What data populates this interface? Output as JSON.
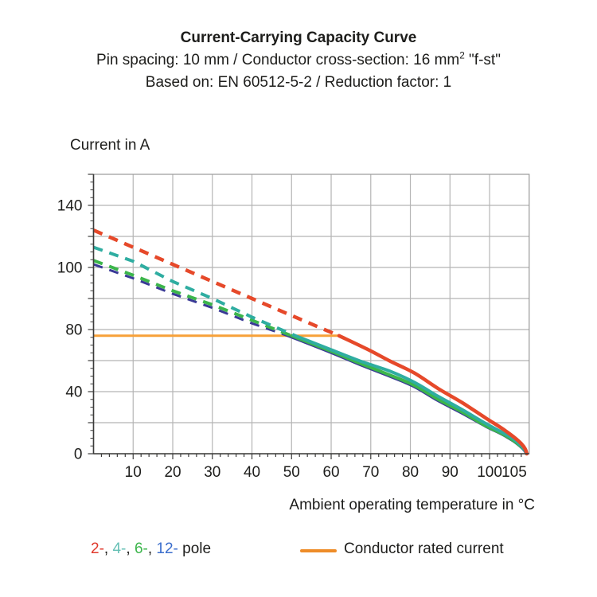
{
  "header": {
    "title": "Current-Carrying Capacity Curve",
    "subtitle_pre": "Pin spacing: 10 mm / Conductor cross-section: 16 mm",
    "subtitle_sup": "2",
    "subtitle_post": " \"f-st\"",
    "basis": "Based on: EN 60512-5-2 / Reduction factor: 1"
  },
  "chart_data": {
    "type": "line",
    "title": "Current-Carrying Capacity Curve",
    "xlabel": "Ambient operating temperature in °C",
    "ylabel": "Current in A",
    "x_unit": "°C",
    "y_unit": "A",
    "xlim": [
      0,
      110
    ],
    "x_gridline_values": [
      10,
      20,
      30,
      40,
      50,
      60,
      70,
      80,
      90,
      100
    ],
    "x_tick_labels": [
      "10",
      "20",
      "30",
      "40",
      "50",
      "60",
      "70",
      "80",
      "90",
      "100",
      "105"
    ],
    "x_tick_values": [
      10,
      20,
      30,
      40,
      50,
      60,
      70,
      80,
      90,
      100,
      105
    ],
    "y_axis_anchor_values": [
      0,
      20,
      40,
      60,
      80,
      90,
      100,
      120,
      140,
      160
    ],
    "y_labeled_ticks": [
      0,
      40,
      80,
      100,
      140
    ],
    "axis_note": "y gridlines evenly spaced at anchor values; scale is compressed between 80 and 100",
    "grid": true,
    "rated_current": {
      "value": 76,
      "temp_range": [
        0,
        62
      ],
      "color": "#f7a139",
      "label": "Conductor rated current"
    },
    "series": [
      {
        "name": "2-pole",
        "color": "#e6492a",
        "style": "dashed-then-solid",
        "dashed": [
          [
            0,
            124
          ],
          [
            10,
            113
          ],
          [
            20,
            102
          ],
          [
            30,
            95.5
          ],
          [
            40,
            90
          ],
          [
            50,
            84.5
          ],
          [
            62,
            76
          ]
        ],
        "solid": [
          [
            62,
            76
          ],
          [
            69,
            67.5
          ],
          [
            75,
            59.5
          ],
          [
            81,
            52
          ],
          [
            87,
            42
          ],
          [
            93,
            33
          ],
          [
            99,
            23
          ],
          [
            103,
            16.5
          ],
          [
            106,
            11
          ],
          [
            108,
            6.5
          ],
          [
            109,
            3
          ],
          [
            109.4,
            0
          ]
        ]
      },
      {
        "name": "4-pole",
        "color": "#2fada1",
        "style": "dashed-then-solid",
        "dashed": [
          [
            0,
            113
          ],
          [
            10,
            104
          ],
          [
            20,
            95.5
          ],
          [
            30,
            90
          ],
          [
            40,
            84
          ],
          [
            51,
            76
          ]
        ],
        "solid": [
          [
            51,
            76
          ],
          [
            60,
            67
          ],
          [
            67,
            60
          ],
          [
            75,
            53
          ],
          [
            81,
            46
          ],
          [
            87,
            37
          ],
          [
            93,
            28.5
          ],
          [
            99,
            19.5
          ],
          [
            103,
            14
          ],
          [
            106,
            9.5
          ],
          [
            108,
            5
          ],
          [
            109,
            2
          ],
          [
            109.3,
            0
          ]
        ]
      },
      {
        "name": "6-pole",
        "color": "#3cb54b",
        "style": "dashed-then-solid",
        "dashed": [
          [
            0,
            104.5
          ],
          [
            10,
            97.5
          ],
          [
            20,
            92.5
          ],
          [
            30,
            88
          ],
          [
            40,
            83
          ],
          [
            50,
            76
          ]
        ],
        "solid": [
          [
            50,
            76
          ],
          [
            60,
            66
          ],
          [
            67,
            58.5
          ],
          [
            75,
            50.5
          ],
          [
            81,
            44
          ],
          [
            87,
            35
          ],
          [
            93,
            27
          ],
          [
            99,
            18
          ],
          [
            103,
            13
          ],
          [
            106,
            8.5
          ],
          [
            108,
            4.5
          ],
          [
            109,
            2
          ],
          [
            109.3,
            0
          ]
        ]
      },
      {
        "name": "12-pole",
        "color": "#3a3a96",
        "style": "dashed-then-solid",
        "dashed": [
          [
            0,
            102
          ],
          [
            10,
            96.5
          ],
          [
            20,
            91.5
          ],
          [
            30,
            87
          ],
          [
            40,
            82
          ],
          [
            49,
            76
          ]
        ],
        "solid": [
          [
            49,
            76
          ],
          [
            60,
            65
          ],
          [
            67,
            57.5
          ],
          [
            75,
            49.5
          ],
          [
            81,
            43
          ],
          [
            87,
            34
          ],
          [
            93,
            26
          ],
          [
            99,
            17.5
          ],
          [
            103,
            12.5
          ],
          [
            106,
            8
          ],
          [
            108,
            4
          ],
          [
            108.8,
            1.8
          ],
          [
            109.2,
            0
          ]
        ]
      }
    ],
    "legend_position": "bottom"
  },
  "legend": {
    "pole_entries": [
      {
        "label": "2-",
        "color": "#e0392c"
      },
      {
        "label": "4-",
        "color": "#66c0b5"
      },
      {
        "label": "6-",
        "color": "#3cb54b"
      },
      {
        "label": "12-",
        "color": "#3b6ecc"
      }
    ],
    "separator": ", ",
    "suffix": " pole",
    "rated_swatch_color": "#ee8c28",
    "rated_label": "Conductor rated current"
  },
  "colors": {
    "background": "#ffffff",
    "grid": "#b5b5b5",
    "frame": "#9a9a9a",
    "axis": "#3c3c3b",
    "text": "#1d1d1b"
  }
}
